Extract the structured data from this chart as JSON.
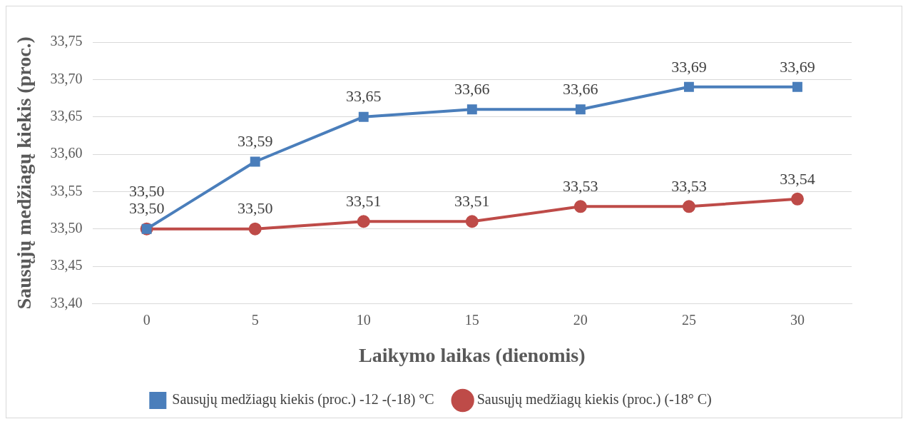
{
  "chart_data": {
    "type": "line",
    "xlabel": "Laikymo laikas (dienomis)",
    "ylabel": "Sausųjų medžiagų kiekis (proc.)",
    "categories": [
      "0",
      "5",
      "10",
      "15",
      "20",
      "25",
      "30"
    ],
    "series": [
      {
        "name": "Sausųjų medžiagų kiekis (proc.) -12 -(-18) °C",
        "color": "#4a7ebb",
        "marker": "square",
        "values": [
          33.5,
          33.59,
          33.65,
          33.66,
          33.66,
          33.69,
          33.69
        ],
        "value_labels": [
          "33,50",
          "33,59",
          "33,65",
          "33,66",
          "33,66",
          "33,69",
          "33,69"
        ]
      },
      {
        "name": "Sausųjų medžiagų kiekis (proc.) (-18° C)",
        "color": "#be4b48",
        "marker": "circle",
        "values": [
          33.5,
          33.5,
          33.51,
          33.51,
          33.53,
          33.53,
          33.54
        ],
        "value_labels": [
          "33,50",
          "33,50",
          "33,51",
          "33,51",
          "33,53",
          "33,53",
          "33,54"
        ]
      }
    ],
    "ylim": [
      33.4,
      33.75
    ],
    "yticks": [
      {
        "value": 33.4,
        "label": "33,40"
      },
      {
        "value": 33.45,
        "label": "33,45"
      },
      {
        "value": 33.5,
        "label": "33,50"
      },
      {
        "value": 33.55,
        "label": "33,55"
      },
      {
        "value": 33.6,
        "label": "33,60"
      },
      {
        "value": 33.65,
        "label": "33,65"
      },
      {
        "value": 33.7,
        "label": "33,70"
      },
      {
        "value": 33.75,
        "label": "33,75"
      }
    ],
    "grid": "y",
    "legend": "bottom",
    "line_style": "solid"
  }
}
